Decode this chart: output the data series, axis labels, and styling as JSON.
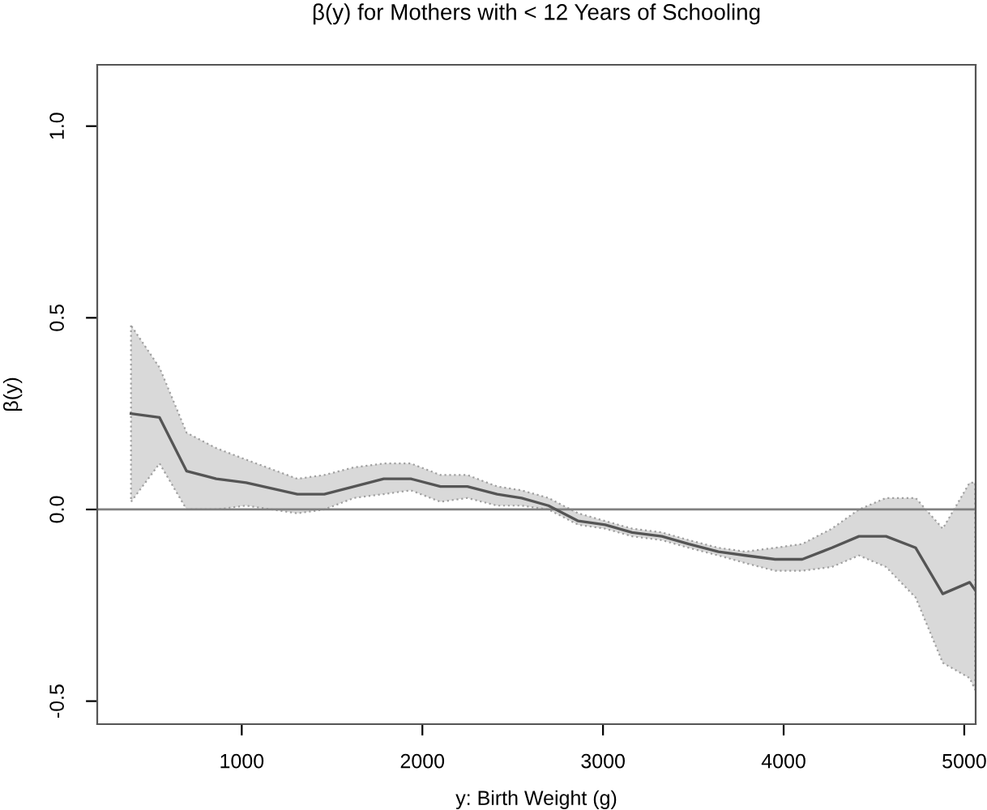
{
  "chart_data": {
    "type": "line",
    "title": "β(y) for Mothers with < 12 Years of Schooling",
    "xlabel": "y: Birth Weight (g)",
    "ylabel": "β(y)",
    "x": [
      387,
      545,
      695,
      859,
      1024,
      1308,
      1457,
      1622,
      1786,
      1936,
      2100,
      2249,
      2414,
      2549,
      2698,
      2863,
      3012,
      3161,
      3326,
      3475,
      3639,
      3789,
      3953,
      4103,
      4267,
      4417,
      4567,
      4731,
      4881,
      5030,
      5060
    ],
    "series": [
      {
        "color": "#555555",
        "values": [
          0.25,
          0.24,
          0.1,
          0.08,
          0.07,
          0.04,
          0.04,
          0.06,
          0.08,
          0.08,
          0.06,
          0.06,
          0.04,
          0.03,
          0.01,
          -0.03,
          -0.04,
          -0.06,
          -0.07,
          -0.09,
          -0.11,
          -0.12,
          -0.13,
          -0.13,
          -0.1,
          -0.07,
          -0.07,
          -0.1,
          -0.22,
          -0.19,
          -0.21
        ],
        "lower": [
          0.02,
          0.12,
          0.0,
          0.0,
          0.01,
          -0.01,
          0.0,
          0.03,
          0.04,
          0.05,
          0.02,
          0.03,
          0.01,
          0.01,
          0.0,
          -0.04,
          -0.05,
          -0.07,
          -0.08,
          -0.1,
          -0.12,
          -0.14,
          -0.16,
          -0.16,
          -0.15,
          -0.12,
          -0.15,
          -0.23,
          -0.4,
          -0.44,
          -0.47
        ],
        "upper": [
          0.48,
          0.37,
          0.2,
          0.16,
          0.13,
          0.08,
          0.09,
          0.11,
          0.12,
          0.12,
          0.09,
          0.09,
          0.06,
          0.05,
          0.03,
          -0.01,
          -0.03,
          -0.05,
          -0.06,
          -0.08,
          -0.1,
          -0.11,
          -0.1,
          -0.09,
          -0.05,
          0.0,
          0.03,
          0.03,
          -0.05,
          0.07,
          0.07
        ]
      }
    ],
    "xlim": [
      200,
      5063
    ],
    "ylim": [
      -0.56,
      1.16
    ],
    "xticks": [
      1000,
      2000,
      3000,
      4000,
      5000
    ],
    "yticks": [
      {
        "value": -0.5,
        "label": "-0.5"
      },
      {
        "value": 0,
        "label": "0.0"
      },
      {
        "value": 0.5,
        "label": "0.5"
      },
      {
        "value": 1,
        "label": "1.0"
      }
    ],
    "ref_lines": [
      {
        "axis": "y",
        "value": 0,
        "label": null,
        "color": "#808080",
        "line_style": "solid"
      }
    ],
    "grid": false,
    "legend": false,
    "marker": "none",
    "line_style": "solid"
  }
}
